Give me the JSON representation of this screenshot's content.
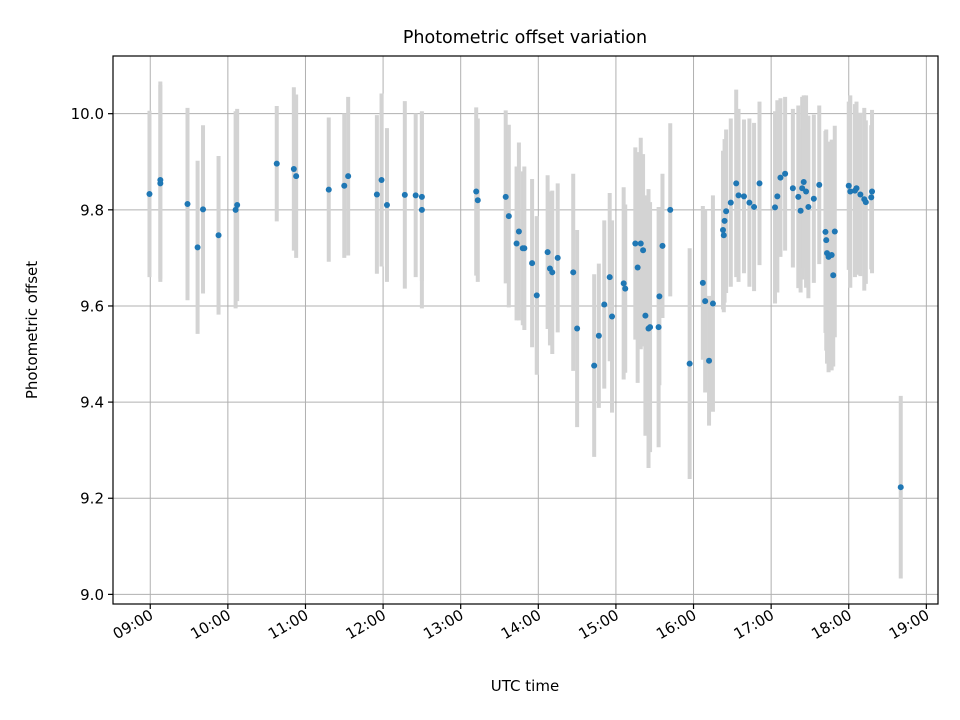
{
  "chart_data": {
    "type": "scatter",
    "title": "Photometric offset variation",
    "xlabel": "UTC time",
    "ylabel": "Photometric offset",
    "x_ticks": [
      "09:00",
      "10:00",
      "11:00",
      "12:00",
      "13:00",
      "14:00",
      "15:00",
      "16:00",
      "17:00",
      "18:00",
      "19:00"
    ],
    "x_tick_hours": [
      9,
      10,
      11,
      12,
      13,
      14,
      15,
      16,
      17,
      18,
      19
    ],
    "xlim_hours": [
      8.52,
      19.15
    ],
    "y_ticks": [
      "9.0",
      "9.2",
      "9.4",
      "9.6",
      "9.8",
      "10.0"
    ],
    "y_tick_values": [
      9.0,
      9.2,
      9.4,
      9.6,
      9.8,
      10.0
    ],
    "ylim": [
      8.98,
      10.12
    ],
    "grid": true,
    "colors": {
      "point": "#1f77b4",
      "errorbar": "#d3d3d3",
      "grid": "#b0b0b0",
      "axes": "#000000"
    },
    "series": [
      {
        "points": [
          [
            8.99,
            9.833,
            0.173
          ],
          [
            9.13,
            9.855,
            0.205
          ],
          [
            9.13,
            9.862,
            0.205
          ],
          [
            9.48,
            9.812,
            0.2
          ],
          [
            9.61,
            9.722,
            0.18
          ],
          [
            9.68,
            9.801,
            0.175
          ],
          [
            9.88,
            9.747,
            0.165
          ],
          [
            10.1,
            9.8,
            0.205
          ],
          [
            10.12,
            9.81,
            0.2
          ],
          [
            10.63,
            9.896,
            0.12
          ],
          [
            10.85,
            9.885,
            0.17
          ],
          [
            10.88,
            9.87,
            0.17
          ],
          [
            11.3,
            9.842,
            0.15
          ],
          [
            11.5,
            9.85,
            0.15
          ],
          [
            11.55,
            9.87,
            0.165
          ],
          [
            11.92,
            9.832,
            0.165
          ],
          [
            11.98,
            9.862,
            0.18
          ],
          [
            12.05,
            9.81,
            0.16
          ],
          [
            12.28,
            9.831,
            0.195
          ],
          [
            12.42,
            9.83,
            0.17
          ],
          [
            12.5,
            9.8,
            0.205
          ],
          [
            12.5,
            9.827,
            0.175
          ],
          [
            13.2,
            9.838,
            0.175
          ],
          [
            13.22,
            9.82,
            0.17
          ],
          [
            13.58,
            9.827,
            0.18
          ],
          [
            13.62,
            9.787,
            0.19
          ],
          [
            13.72,
            9.73,
            0.16
          ],
          [
            13.75,
            9.755,
            0.185
          ],
          [
            13.8,
            9.72,
            0.16
          ],
          [
            13.82,
            9.72,
            0.17
          ],
          [
            13.92,
            9.689,
            0.175
          ],
          [
            13.98,
            9.622,
            0.165
          ],
          [
            14.12,
            9.712,
            0.16
          ],
          [
            14.15,
            9.678,
            0.16
          ],
          [
            14.18,
            9.67,
            0.17
          ],
          [
            14.25,
            9.7,
            0.155
          ],
          [
            14.45,
            9.67,
            0.205
          ],
          [
            14.5,
            9.553,
            0.205
          ],
          [
            14.72,
            9.476,
            0.19
          ],
          [
            14.78,
            9.538,
            0.15
          ],
          [
            14.85,
            9.603,
            0.175
          ],
          [
            14.92,
            9.66,
            0.175
          ],
          [
            14.95,
            9.578,
            0.2
          ],
          [
            15.1,
            9.647,
            0.2
          ],
          [
            15.12,
            9.636,
            0.175
          ],
          [
            15.25,
            9.73,
            0.2
          ],
          [
            15.28,
            9.68,
            0.24
          ],
          [
            15.32,
            9.73,
            0.22
          ],
          [
            15.35,
            9.716,
            0.2
          ],
          [
            15.38,
            9.58,
            0.25
          ],
          [
            15.42,
            9.553,
            0.29
          ],
          [
            15.44,
            9.556,
            0.26
          ],
          [
            15.55,
            9.556,
            0.25
          ],
          [
            15.56,
            9.62,
            0.185
          ],
          [
            15.6,
            9.725,
            0.15
          ],
          [
            15.7,
            9.8,
            0.18
          ],
          [
            15.95,
            9.48,
            0.24
          ],
          [
            16.12,
            9.648,
            0.16
          ],
          [
            16.15,
            9.61,
            0.19
          ],
          [
            16.2,
            9.486,
            0.135
          ],
          [
            16.25,
            9.605,
            0.225
          ],
          [
            16.38,
            9.758,
            0.165
          ],
          [
            16.39,
            9.747,
            0.16
          ],
          [
            16.4,
            9.777,
            0.17
          ],
          [
            16.42,
            9.797,
            0.17
          ],
          [
            16.48,
            9.815,
            0.175
          ],
          [
            16.55,
            9.855,
            0.195
          ],
          [
            16.58,
            9.83,
            0.18
          ],
          [
            16.65,
            9.828,
            0.16
          ],
          [
            16.72,
            9.815,
            0.175
          ],
          [
            16.78,
            9.806,
            0.175
          ],
          [
            16.85,
            9.855,
            0.17
          ],
          [
            17.05,
            9.805,
            0.2
          ],
          [
            17.08,
            9.828,
            0.2
          ],
          [
            17.12,
            9.867,
            0.165
          ],
          [
            17.18,
            9.875,
            0.16
          ],
          [
            17.28,
            9.845,
            0.165
          ],
          [
            17.35,
            9.827,
            0.19
          ],
          [
            17.38,
            9.798,
            0.17
          ],
          [
            17.4,
            9.845,
            0.19
          ],
          [
            17.42,
            9.858,
            0.18
          ],
          [
            17.45,
            9.838,
            0.2
          ],
          [
            17.48,
            9.806,
            0.19
          ],
          [
            17.55,
            9.823,
            0.175
          ],
          [
            17.62,
            9.852,
            0.165
          ],
          [
            17.7,
            9.754,
            0.21
          ],
          [
            17.71,
            9.737,
            0.23
          ],
          [
            17.72,
            9.71,
            0.23
          ],
          [
            17.74,
            9.702,
            0.24
          ],
          [
            17.78,
            9.706,
            0.24
          ],
          [
            17.8,
            9.664,
            0.19
          ],
          [
            17.82,
            9.755,
            0.22
          ],
          [
            18.0,
            9.85,
            0.175
          ],
          [
            18.02,
            9.838,
            0.2
          ],
          [
            18.08,
            9.84,
            0.18
          ],
          [
            18.1,
            9.845,
            0.18
          ],
          [
            18.15,
            9.832,
            0.17
          ],
          [
            18.2,
            9.822,
            0.19
          ],
          [
            18.22,
            9.816,
            0.17
          ],
          [
            18.29,
            9.826,
            0.15
          ],
          [
            18.3,
            9.838,
            0.17
          ],
          [
            18.67,
            9.223,
            0.19
          ]
        ]
      }
    ]
  }
}
